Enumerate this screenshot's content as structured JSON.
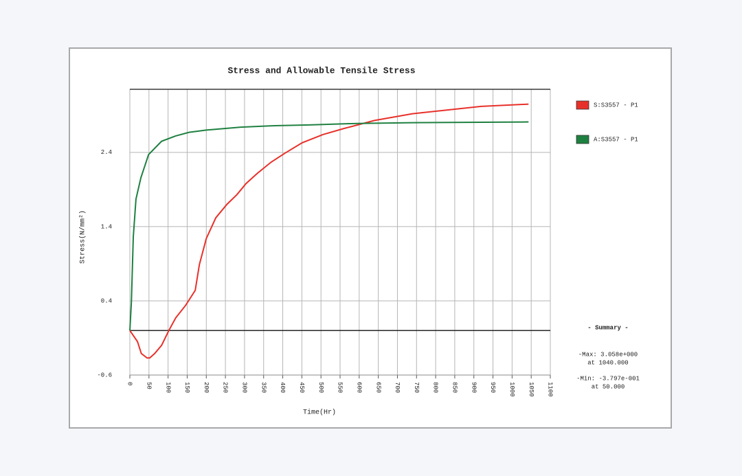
{
  "chart_data": {
    "type": "line",
    "title": "Stress and Allowable Tensile Stress",
    "x_label": "Time(Hr)",
    "y_label": "Stress(N/mm²)",
    "xlim": [
      0,
      1100
    ],
    "ylim": [
      -0.6,
      3.25
    ],
    "xticks": [
      0,
      50,
      100,
      150,
      200,
      250,
      300,
      350,
      400,
      450,
      500,
      550,
      600,
      650,
      700,
      750,
      800,
      850,
      900,
      950,
      1000,
      1050,
      1100
    ],
    "yticks": [
      -0.6,
      0.4,
      1.4,
      2.4
    ],
    "grid": true,
    "reference_line": 0,
    "series": [
      {
        "name": "S:S3557 - P1",
        "color": "#e8302a",
        "x": [
          0,
          20,
          30,
          45,
          52,
          65,
          83,
          102,
          120,
          146,
          171,
          182,
          200,
          225,
          254,
          280,
          304,
          334,
          370,
          406,
          451,
          505,
          559,
          640,
          739,
          829,
          919,
          1043
        ],
        "values": [
          0,
          -0.15,
          -0.31,
          -0.37,
          -0.37,
          -0.31,
          -0.2,
          0,
          0.17,
          0.34,
          0.54,
          0.89,
          1.24,
          1.52,
          1.7,
          1.83,
          1.98,
          2.12,
          2.27,
          2.39,
          2.53,
          2.64,
          2.72,
          2.83,
          2.92,
          2.97,
          3.02,
          3.05
        ]
      },
      {
        "name": "A:S3557 - P1",
        "color": "#1e8040",
        "x": [
          0,
          4,
          9,
          16,
          29,
          49,
          83,
          119,
          155,
          200,
          290,
          379,
          469,
          595,
          739,
          1043
        ],
        "values": [
          0,
          0.38,
          1.26,
          1.77,
          2.06,
          2.37,
          2.55,
          2.62,
          2.67,
          2.7,
          2.74,
          2.76,
          2.77,
          2.79,
          2.8,
          2.81
        ]
      }
    ],
    "summary": {
      "title": "- Summary -",
      "lines": [
        "-Max: 3.058e+000",
        "at 1040.000",
        "-Min: -3.797e-001",
        "at 50.000"
      ]
    }
  }
}
